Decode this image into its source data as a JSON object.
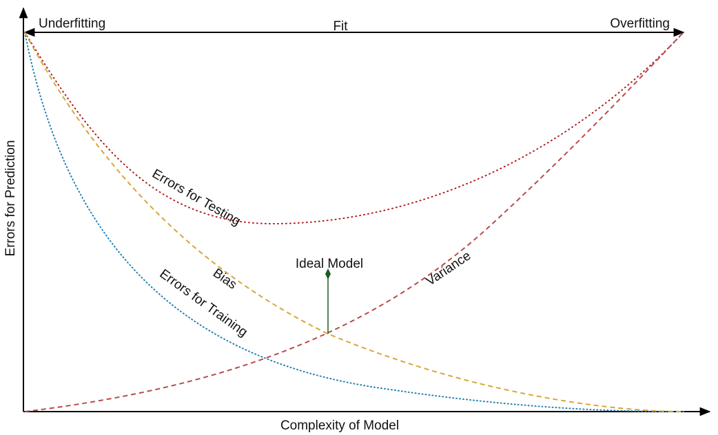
{
  "diagram": {
    "labels": {
      "y_axis": "Errors for Prediction",
      "x_axis": "Complexity of Model",
      "fit": "Fit",
      "underfitting": "Underfitting",
      "overfitting": "Overfitting",
      "testing": "Errors for Testing",
      "training": "Errors for Training",
      "bias": "Bias",
      "variance": "Variance",
      "ideal": "Ideal Model"
    },
    "colors": {
      "axis": "#000000",
      "testing": "#b01c1c",
      "training": "#1f7fb0",
      "bias": "#d6a53a",
      "variance": "#b84a4a",
      "ideal": "#1e5c1e"
    }
  }
}
